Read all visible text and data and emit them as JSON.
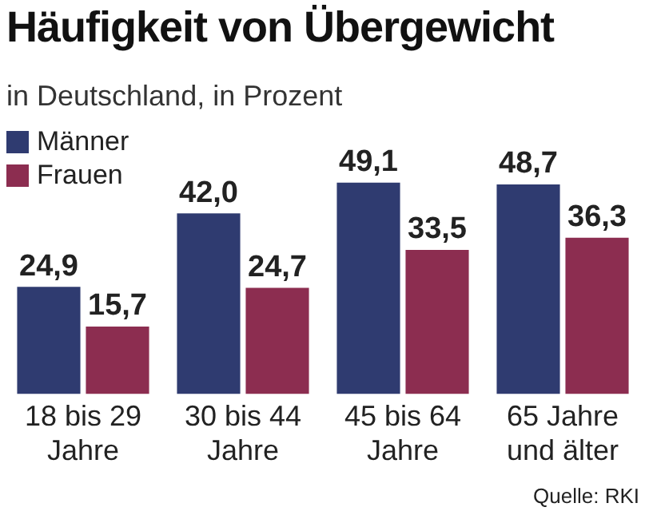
{
  "chart_data": {
    "type": "bar",
    "title": "Häufigkeit von Übergewicht",
    "subtitle": "in Deutschland, in Prozent",
    "categories": [
      "18 bis 29 Jahre",
      "30 bis 44 Jahre",
      "45 bis 64 Jahre",
      "65 Jahre und älter"
    ],
    "series": [
      {
        "name": "Männer",
        "color": "#2f3b70",
        "values": [
          24.9,
          42.0,
          49.1,
          48.7
        ],
        "value_labels": [
          "24,9",
          "42,0",
          "49,1",
          "48,7"
        ]
      },
      {
        "name": "Frauen",
        "color": "#8c2d50",
        "values": [
          15.7,
          24.7,
          33.5,
          36.3
        ],
        "value_labels": [
          "15,7",
          "24,7",
          "33,5",
          "36,3"
        ]
      }
    ],
    "legend": "top left",
    "grid": false,
    "annotations": [
      "Quelle: RKI"
    ]
  }
}
